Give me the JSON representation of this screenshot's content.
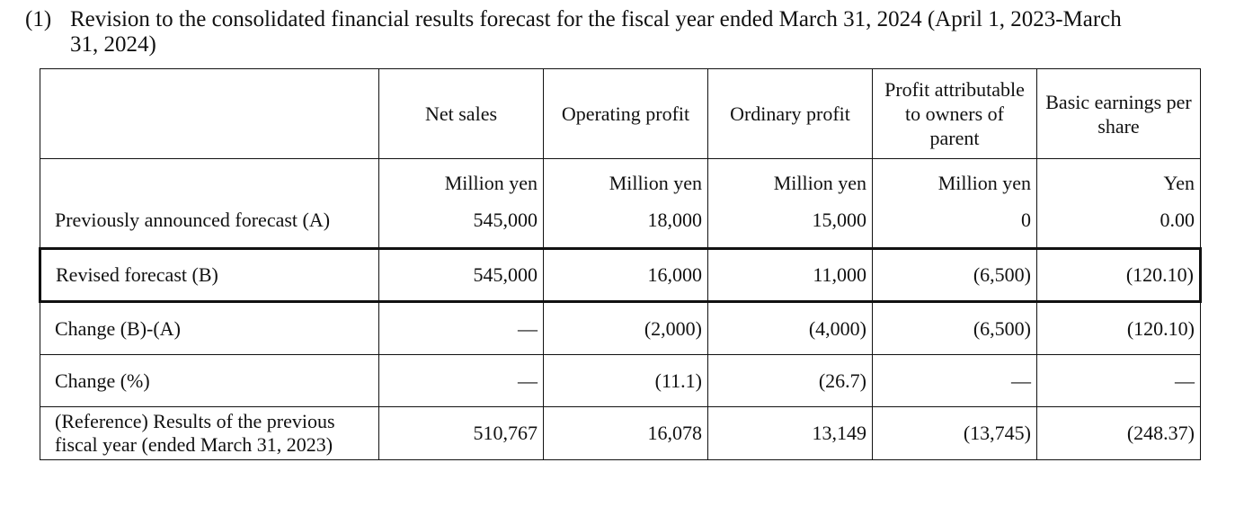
{
  "heading": {
    "number": "(1)",
    "line1": "Revision to the consolidated financial results forecast for the fiscal year ended March 31, 2024 (April 1, 2023-March",
    "line2": "31, 2024)"
  },
  "table": {
    "columns": [
      "Net sales",
      "Operating profit",
      "Ordinary profit",
      "Profit attributable to owners of parent",
      "Basic earnings per share"
    ],
    "units": [
      "Million yen",
      "Million yen",
      "Million yen",
      "Million yen",
      "Yen"
    ],
    "rows": [
      {
        "label": "Previously announced forecast (A)",
        "values": [
          "545,000",
          "18,000",
          "15,000",
          "0",
          "0.00"
        ]
      },
      {
        "label": "Revised forecast (B)",
        "values": [
          "545,000",
          "16,000",
          "11,000",
          "(6,500)",
          "(120.10)"
        ]
      },
      {
        "label": "Change (B)-(A)",
        "values": [
          "—",
          "(2,000)",
          "(4,000)",
          "(6,500)",
          "(120.10)"
        ]
      },
      {
        "label": "Change (%)",
        "values": [
          "—",
          "(11.1)",
          "(26.7)",
          "—",
          "—"
        ]
      },
      {
        "label": "(Reference) Results of the previous fiscal year (ended March 31, 2023)",
        "values": [
          "510,767",
          "16,078",
          "13,149",
          "(13,745)",
          "(248.37)"
        ]
      }
    ]
  }
}
